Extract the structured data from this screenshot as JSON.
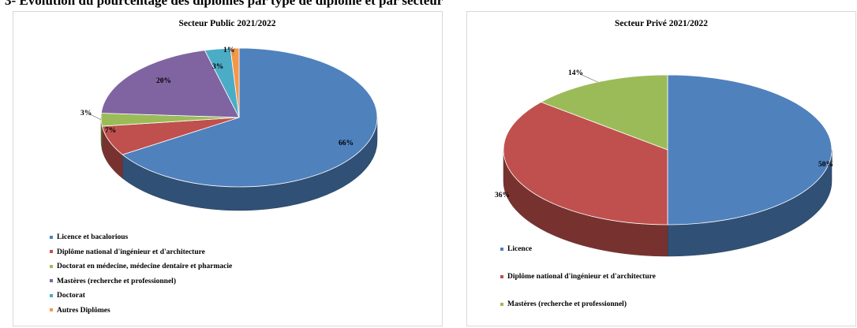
{
  "page": {
    "heading": "3- Évolution du pourcentage des diplômes  par type de diplôme et par secteur"
  },
  "chart_data": [
    {
      "type": "pie",
      "title": "Secteur Public 2021/2022",
      "categories": [
        "Licence et bacalorious",
        "Diplôme national d'ingénieur et d'architecture",
        "Doctorat en médecine, médecine dentaire et pharmacie",
        "Mastères (recherche et professionnel)",
        "Doctorat",
        "Autres Diplômes"
      ],
      "values": [
        66,
        7,
        3,
        20,
        3,
        1
      ],
      "labels": [
        "66%",
        "7%",
        "3%",
        "20%",
        "3%",
        "1%"
      ],
      "colors": [
        "#4f81bd",
        "#c0504d",
        "#9bbb59",
        "#8064a2",
        "#4bacc6",
        "#f79646"
      ],
      "style": "3d",
      "legend": "bottom-left"
    },
    {
      "type": "pie",
      "title": "Secteur Privé 2021/2022",
      "categories": [
        "Licence",
        "Diplôme national d'ingénieur et d'architecture",
        "Mastères (recherche et professionnel)"
      ],
      "values": [
        50,
        36,
        14
      ],
      "labels": [
        "50%",
        "36%",
        "14%"
      ],
      "colors": [
        "#4f81bd",
        "#c0504d",
        "#9bbb59"
      ],
      "style": "3d",
      "legend": "bottom-left"
    }
  ]
}
